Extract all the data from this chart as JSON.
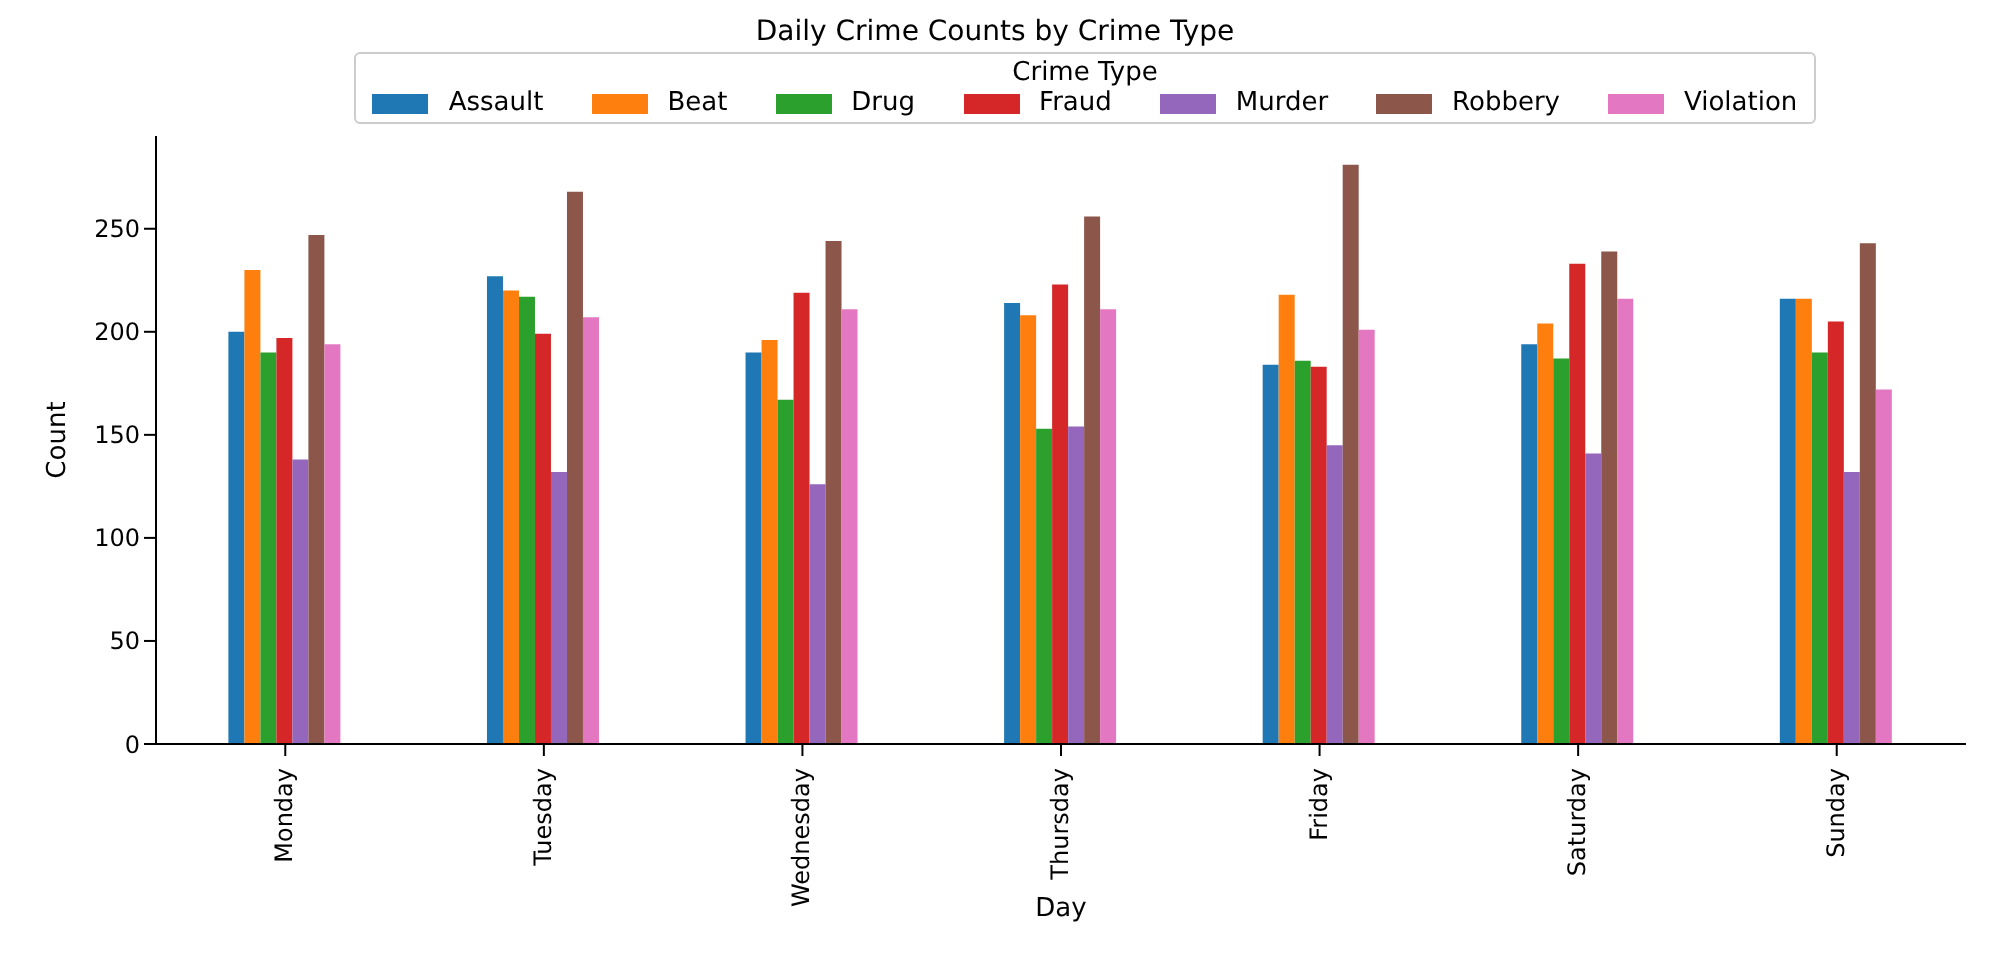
{
  "chart_data": {
    "type": "bar",
    "title": "Daily Crime Counts by Crime Type",
    "xlabel": "Day",
    "ylabel": "Count",
    "legend_title": "Crime Type",
    "legend": "top",
    "categories": [
      "Monday",
      "Tuesday",
      "Wednesday",
      "Thursday",
      "Friday",
      "Saturday",
      "Sunday"
    ],
    "series": [
      {
        "name": "Assault",
        "color": "#1f77b4",
        "values": [
          200,
          227,
          190,
          214,
          184,
          194,
          216
        ]
      },
      {
        "name": "Beat",
        "color": "#ff7f0e",
        "values": [
          230,
          220,
          196,
          208,
          218,
          204,
          216
        ]
      },
      {
        "name": "Drug",
        "color": "#2ca02c",
        "values": [
          190,
          217,
          167,
          153,
          186,
          187,
          190
        ]
      },
      {
        "name": "Fraud",
        "color": "#d62728",
        "values": [
          197,
          199,
          219,
          223,
          183,
          233,
          205
        ]
      },
      {
        "name": "Murder",
        "color": "#9467bd",
        "values": [
          138,
          132,
          126,
          154,
          145,
          141,
          132
        ]
      },
      {
        "name": "Robbery",
        "color": "#8c564b",
        "values": [
          247,
          268,
          244,
          256,
          281,
          239,
          243
        ]
      },
      {
        "name": "Violation",
        "color": "#e377c2",
        "values": [
          194,
          207,
          211,
          211,
          201,
          216,
          172
        ]
      }
    ],
    "ylim": [
      0,
      295
    ],
    "yticks": [
      0,
      50,
      100,
      150,
      200,
      250
    ]
  }
}
